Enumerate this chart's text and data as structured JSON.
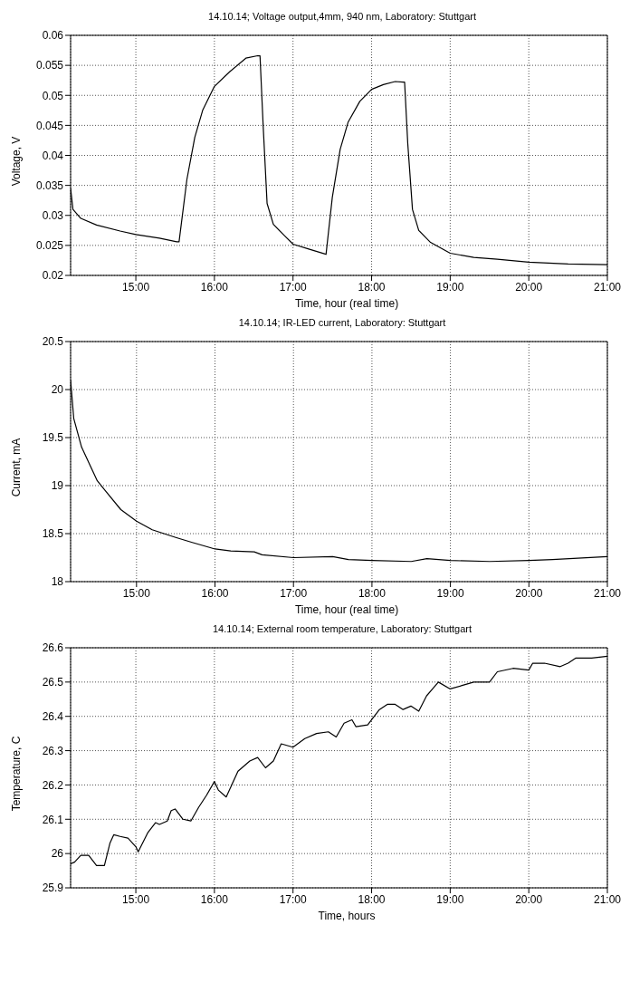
{
  "chart_data": [
    {
      "type": "line",
      "title": "14.10.14; Voltage output,4mm, 940 nm,  Laboratory: Stuttgart",
      "xlabel": "Time, hour (real time)",
      "ylabel": "Voltage, V",
      "color": "#000000",
      "grid": true,
      "x": [
        14.17,
        14.2,
        14.3,
        14.5,
        14.8,
        15.0,
        15.3,
        15.52,
        15.55,
        15.65,
        15.75,
        15.85,
        16.0,
        16.2,
        16.4,
        16.55,
        16.58,
        16.62,
        16.67,
        16.75,
        16.9,
        17.0,
        17.2,
        17.4,
        17.42,
        17.5,
        17.6,
        17.7,
        17.85,
        18.0,
        18.15,
        18.3,
        18.4,
        18.42,
        18.46,
        18.52,
        18.6,
        18.75,
        19.0,
        19.3,
        19.6,
        20.0,
        20.5,
        21.0
      ],
      "values": [
        0.0345,
        0.031,
        0.0295,
        0.0284,
        0.0274,
        0.0268,
        0.0262,
        0.0256,
        0.0256,
        0.036,
        0.043,
        0.0475,
        0.0515,
        0.054,
        0.0562,
        0.0566,
        0.0566,
        0.045,
        0.032,
        0.0285,
        0.0265,
        0.0252,
        0.0244,
        0.0236,
        0.0235,
        0.033,
        0.041,
        0.0455,
        0.049,
        0.051,
        0.0518,
        0.0523,
        0.0522,
        0.0522,
        0.042,
        0.031,
        0.0275,
        0.0255,
        0.0237,
        0.023,
        0.0227,
        0.0222,
        0.0219,
        0.0218
      ],
      "xlim": [
        14.17,
        21
      ],
      "xticks": [
        {
          "value": 15,
          "label": "15:00"
        },
        {
          "value": 16,
          "label": "16:00"
        },
        {
          "value": 17,
          "label": "17:00"
        },
        {
          "value": 18,
          "label": "18:00"
        },
        {
          "value": 19,
          "label": "19:00"
        },
        {
          "value": 20,
          "label": "20:00"
        },
        {
          "value": 21,
          "label": "21:00"
        }
      ],
      "ylim": [
        0.02,
        0.06
      ],
      "yticks": [
        0.02,
        0.025,
        0.03,
        0.035,
        0.04,
        0.045,
        0.05,
        0.055,
        0.06
      ]
    },
    {
      "type": "line",
      "title": "14.10.14; IR-LED current, Laboratory: Stuttgart",
      "xlabel": "Time, hour (real time)",
      "ylabel": "Current, mA",
      "color": "#000000",
      "grid": true,
      "x": [
        14.16,
        14.2,
        14.3,
        14.5,
        14.6,
        14.8,
        15.0,
        15.2,
        15.5,
        15.7,
        16.0,
        16.2,
        16.5,
        16.6,
        17.0,
        17.5,
        17.7,
        18.0,
        18.5,
        18.7,
        19.0,
        19.5,
        20.0,
        20.3,
        21.0
      ],
      "values": [
        20.1,
        19.7,
        19.4,
        19.05,
        18.95,
        18.75,
        18.63,
        18.54,
        18.46,
        18.41,
        18.34,
        18.32,
        18.31,
        18.28,
        18.25,
        18.26,
        18.23,
        18.22,
        18.21,
        18.24,
        18.22,
        18.21,
        18.22,
        18.23,
        18.26
      ],
      "xlim": [
        14.16,
        21
      ],
      "xticks": [
        {
          "value": 15,
          "label": "15:00"
        },
        {
          "value": 16,
          "label": "16:00"
        },
        {
          "value": 17,
          "label": "17:00"
        },
        {
          "value": 18,
          "label": "18:00"
        },
        {
          "value": 19,
          "label": "19:00"
        },
        {
          "value": 20,
          "label": "20:00"
        },
        {
          "value": 21,
          "label": "21:00"
        }
      ],
      "ylim": [
        18,
        20.5
      ],
      "yticks": [
        18,
        18.5,
        19,
        19.5,
        20,
        20.5
      ]
    },
    {
      "type": "line",
      "title": "14.10.14; External room temperature, Laboratory: Stuttgart",
      "xlabel": "Time, hours",
      "ylabel": "Temperature, C",
      "color": "#000000",
      "grid": true,
      "x": [
        14.17,
        14.22,
        14.3,
        14.4,
        14.5,
        14.6,
        14.67,
        14.72,
        14.8,
        14.9,
        15.0,
        15.03,
        15.15,
        15.25,
        15.3,
        15.4,
        15.45,
        15.5,
        15.6,
        15.7,
        15.8,
        15.9,
        16.0,
        16.05,
        16.15,
        16.3,
        16.45,
        16.55,
        16.65,
        16.75,
        16.85,
        17.0,
        17.15,
        17.3,
        17.45,
        17.55,
        17.65,
        17.75,
        17.8,
        17.95,
        18.1,
        18.2,
        18.3,
        18.4,
        18.5,
        18.6,
        18.7,
        18.85,
        19.0,
        19.15,
        19.3,
        19.5,
        19.6,
        19.8,
        20.0,
        20.05,
        20.2,
        20.4,
        20.5,
        20.6,
        20.8,
        21.0
      ],
      "values": [
        25.97,
        25.975,
        25.995,
        25.995,
        25.965,
        25.965,
        26.03,
        26.055,
        26.05,
        26.045,
        26.02,
        26.005,
        26.06,
        26.09,
        26.085,
        26.095,
        26.125,
        26.13,
        26.1,
        26.095,
        26.135,
        26.17,
        26.21,
        26.185,
        26.165,
        26.24,
        26.27,
        26.28,
        26.25,
        26.27,
        26.32,
        26.31,
        26.335,
        26.35,
        26.355,
        26.34,
        26.38,
        26.39,
        26.37,
        26.375,
        26.42,
        26.435,
        26.435,
        26.42,
        26.43,
        26.415,
        26.46,
        26.5,
        26.48,
        26.49,
        26.5,
        26.5,
        26.53,
        26.54,
        26.535,
        26.555,
        26.555,
        26.545,
        26.555,
        26.57,
        26.57,
        26.575
      ],
      "xlim": [
        14.17,
        21
      ],
      "xticks": [
        {
          "value": 15,
          "label": "15:00"
        },
        {
          "value": 16,
          "label": "16:00"
        },
        {
          "value": 17,
          "label": "17:00"
        },
        {
          "value": 18,
          "label": "18:00"
        },
        {
          "value": 19,
          "label": "19:00"
        },
        {
          "value": 20,
          "label": "20:00"
        },
        {
          "value": 21,
          "label": "21:00"
        }
      ],
      "ylim": [
        25.9,
        26.6
      ],
      "yticks": [
        25.9,
        26.0,
        26.1,
        26.2,
        26.3,
        26.4,
        26.5,
        26.6
      ]
    }
  ]
}
